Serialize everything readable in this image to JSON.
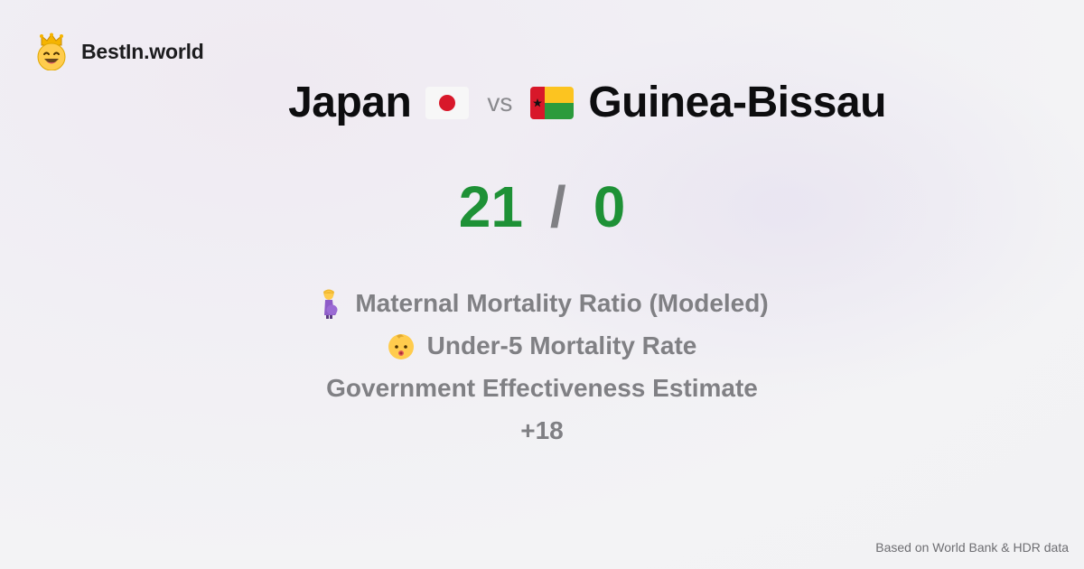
{
  "brand": {
    "name": "BestIn.world",
    "icon": "smiling-crown-emoji-icon"
  },
  "comparison": {
    "left": {
      "name": "Japan",
      "flag": "japan-flag-icon"
    },
    "vs_label": "vs",
    "right": {
      "name": "Guinea-Bissau",
      "flag": "guinea-bissau-flag-icon"
    }
  },
  "score": {
    "left": "21",
    "separator": "/",
    "right": "0",
    "color": "#1e9136"
  },
  "metrics": [
    {
      "label": "Maternal Mortality Ratio (Modeled)",
      "icon": "pregnant-woman-icon"
    },
    {
      "label": "Under-5 Mortality Rate",
      "icon": "baby-face-icon"
    },
    {
      "label": "Government Effectiveness Estimate",
      "icon": ""
    },
    {
      "label": "+18",
      "icon": ""
    }
  ],
  "footer": {
    "source": "Based on World Bank & HDR data"
  }
}
